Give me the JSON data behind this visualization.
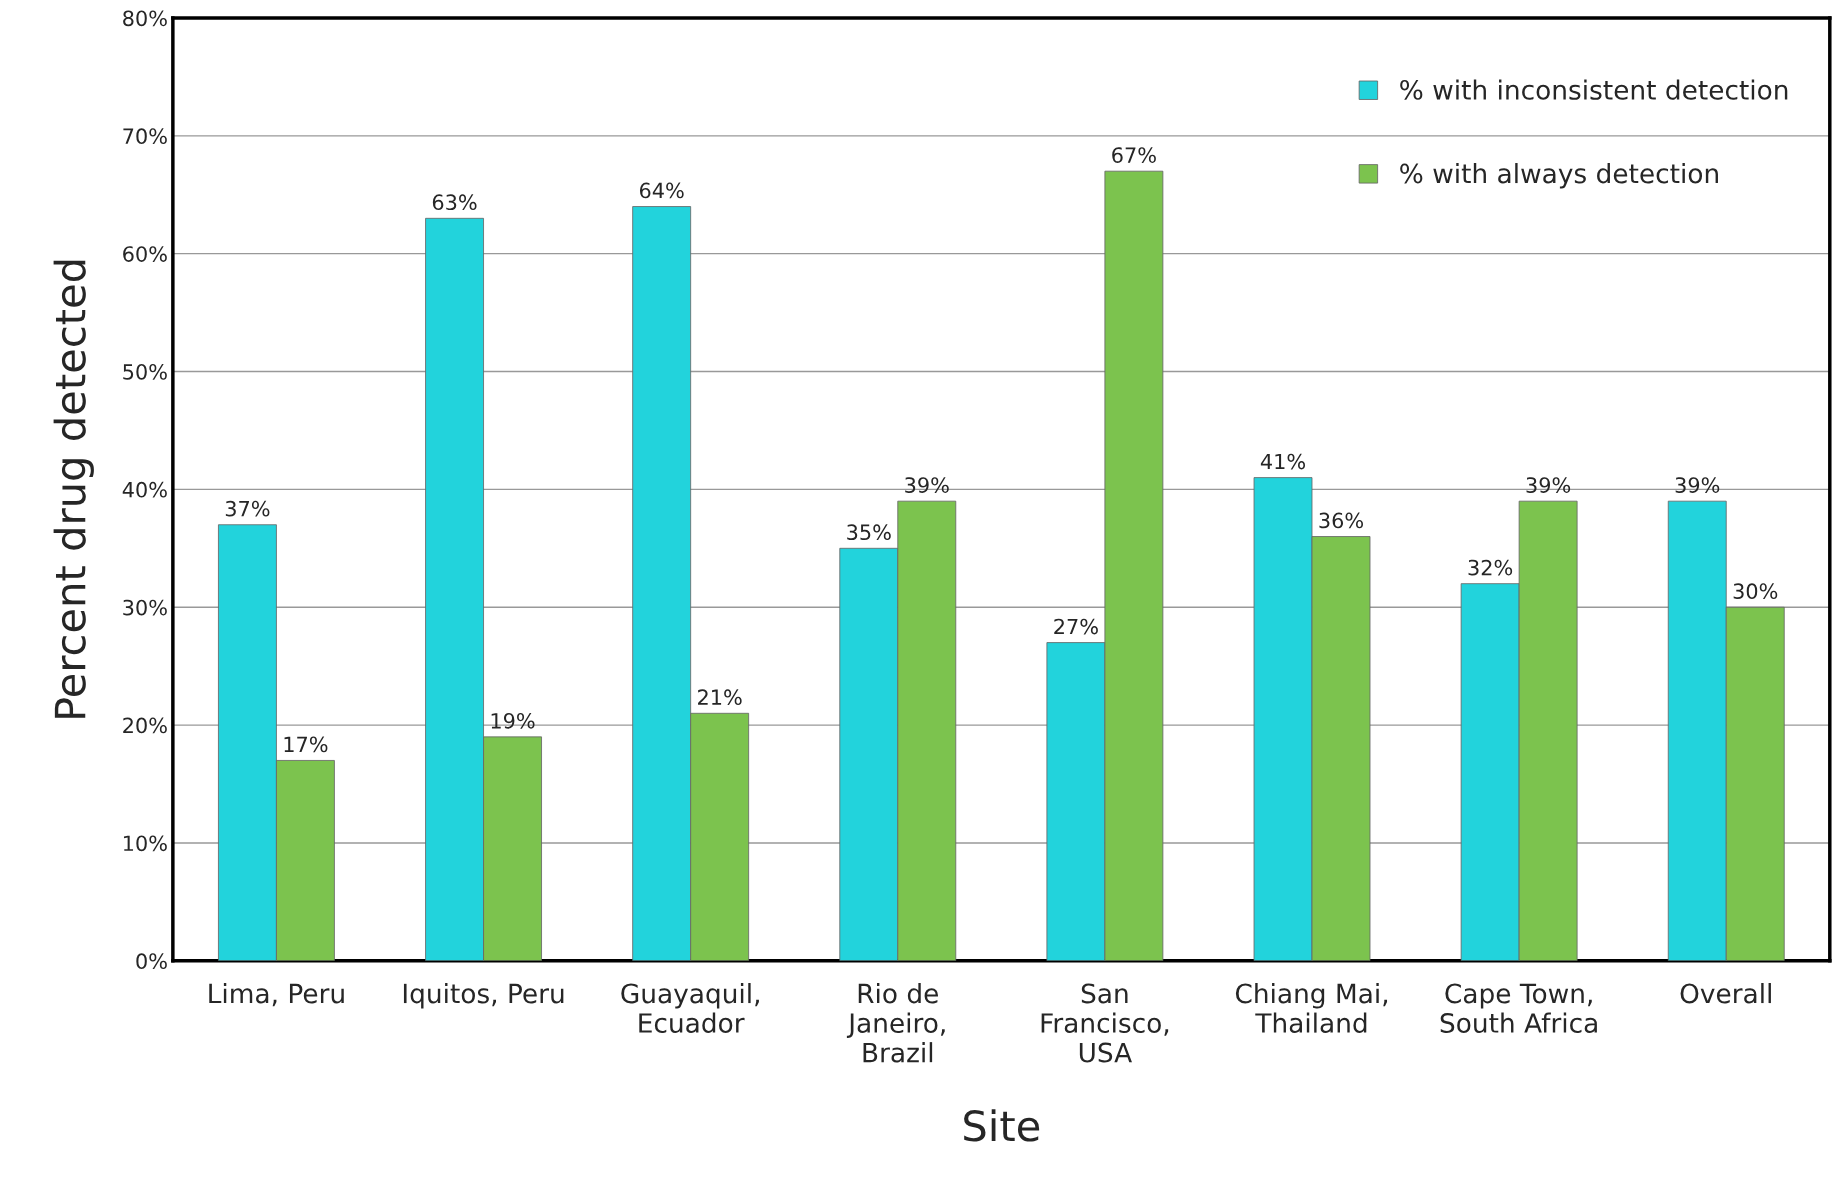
{
  "chart_data": {
    "type": "bar",
    "xlabel": "Site",
    "ylabel": "Percent drug detected",
    "categories": [
      "Lima, Peru",
      "Iquitos, Peru",
      "Guayaquil,\nEcuador",
      "Rio de\nJaneiro,\nBrazil",
      "San\nFrancisco,\nUSA",
      "Chiang Mai,\nThailand",
      "Cape Town,\nSouth Africa",
      "Overall"
    ],
    "series": [
      {
        "name": "% with inconsistent detection",
        "color": "#22d3dc",
        "values": [
          37,
          63,
          64,
          35,
          27,
          41,
          32,
          39
        ],
        "value_labels": [
          "37%",
          "63%",
          "64%",
          "35%",
          "27%",
          "41%",
          "32%",
          "39%"
        ]
      },
      {
        "name": "% with always detection",
        "color": "#7cc34e",
        "values": [
          17,
          19,
          21,
          39,
          67,
          36,
          39,
          30
        ],
        "value_labels": [
          "17%",
          "19%",
          "21%",
          "39%",
          "67%",
          "36%",
          "39%",
          "30%"
        ]
      }
    ],
    "ylim": [
      0,
      80
    ],
    "yticks": [
      {
        "value": 0,
        "label": "0%"
      },
      {
        "value": 10,
        "label": "10%"
      },
      {
        "value": 20,
        "label": "20%"
      },
      {
        "value": 30,
        "label": "30%"
      },
      {
        "value": 40,
        "label": "40%"
      },
      {
        "value": 50,
        "label": "50%"
      },
      {
        "value": 60,
        "label": "60%"
      },
      {
        "value": 70,
        "label": "70%"
      },
      {
        "value": 80,
        "label": "80%"
      }
    ],
    "grid": "y",
    "legend": "top right"
  }
}
